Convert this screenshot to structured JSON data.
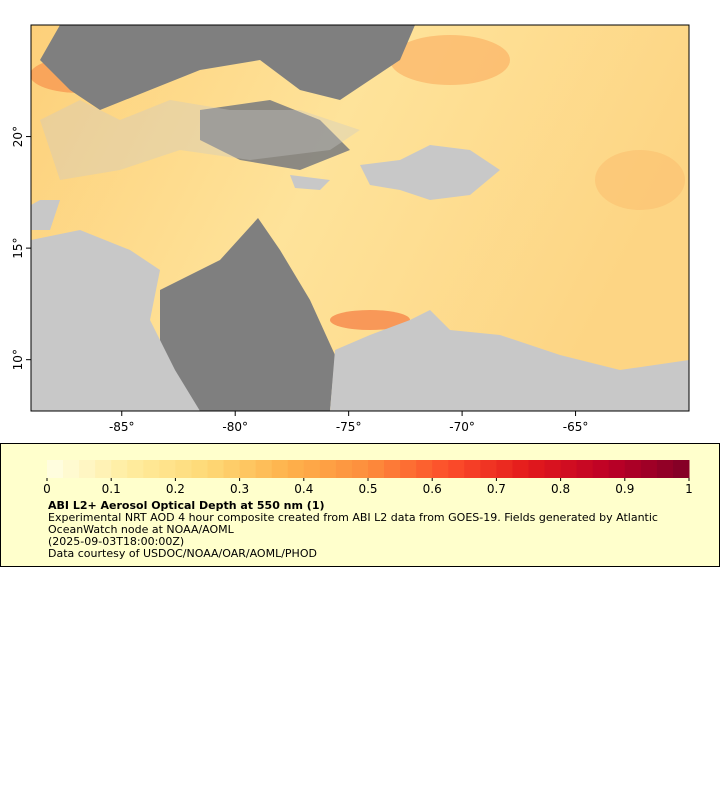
{
  "map": {
    "xlim": [
      -89,
      -60
    ],
    "ylim": [
      7.7,
      25
    ],
    "xticks": [
      {
        "value": -85,
        "label": "-85°"
      },
      {
        "value": -80,
        "label": "-80°"
      },
      {
        "value": -75,
        "label": "-75°"
      },
      {
        "value": -70,
        "label": "-70°"
      },
      {
        "value": -65,
        "label": "-65°"
      }
    ],
    "yticks": [
      {
        "value": 10,
        "label": "10°"
      },
      {
        "value": 15,
        "label": "15°"
      },
      {
        "value": 20,
        "label": "20°"
      }
    ]
  },
  "colorbar": {
    "range": [
      0,
      1
    ],
    "ticks": [
      0,
      0.1,
      0.2,
      0.3,
      0.4,
      0.5,
      0.6,
      0.7,
      0.8,
      0.9,
      1
    ],
    "colormap": [
      "#ffffe5",
      "#ffeda0",
      "#fed976",
      "#feb24c",
      "#fd8d3c",
      "#fc4e2a",
      "#e31a1c",
      "#bd0026",
      "#800026"
    ]
  },
  "legend": {
    "title": "ABI L2+ Aerosol Optical Depth at 550 nm (1)",
    "lines": [
      "Experimental NRT AOD 4 hour composite created from ABI L2 data from GOES-19. Fields generated by Atlantic OceanWatch node at NOAA/AOML",
      "(2025-09-03T18:00:00Z)",
      "Data courtesy of USDOC/NOAA/OAR/AOML/PHOD"
    ]
  }
}
